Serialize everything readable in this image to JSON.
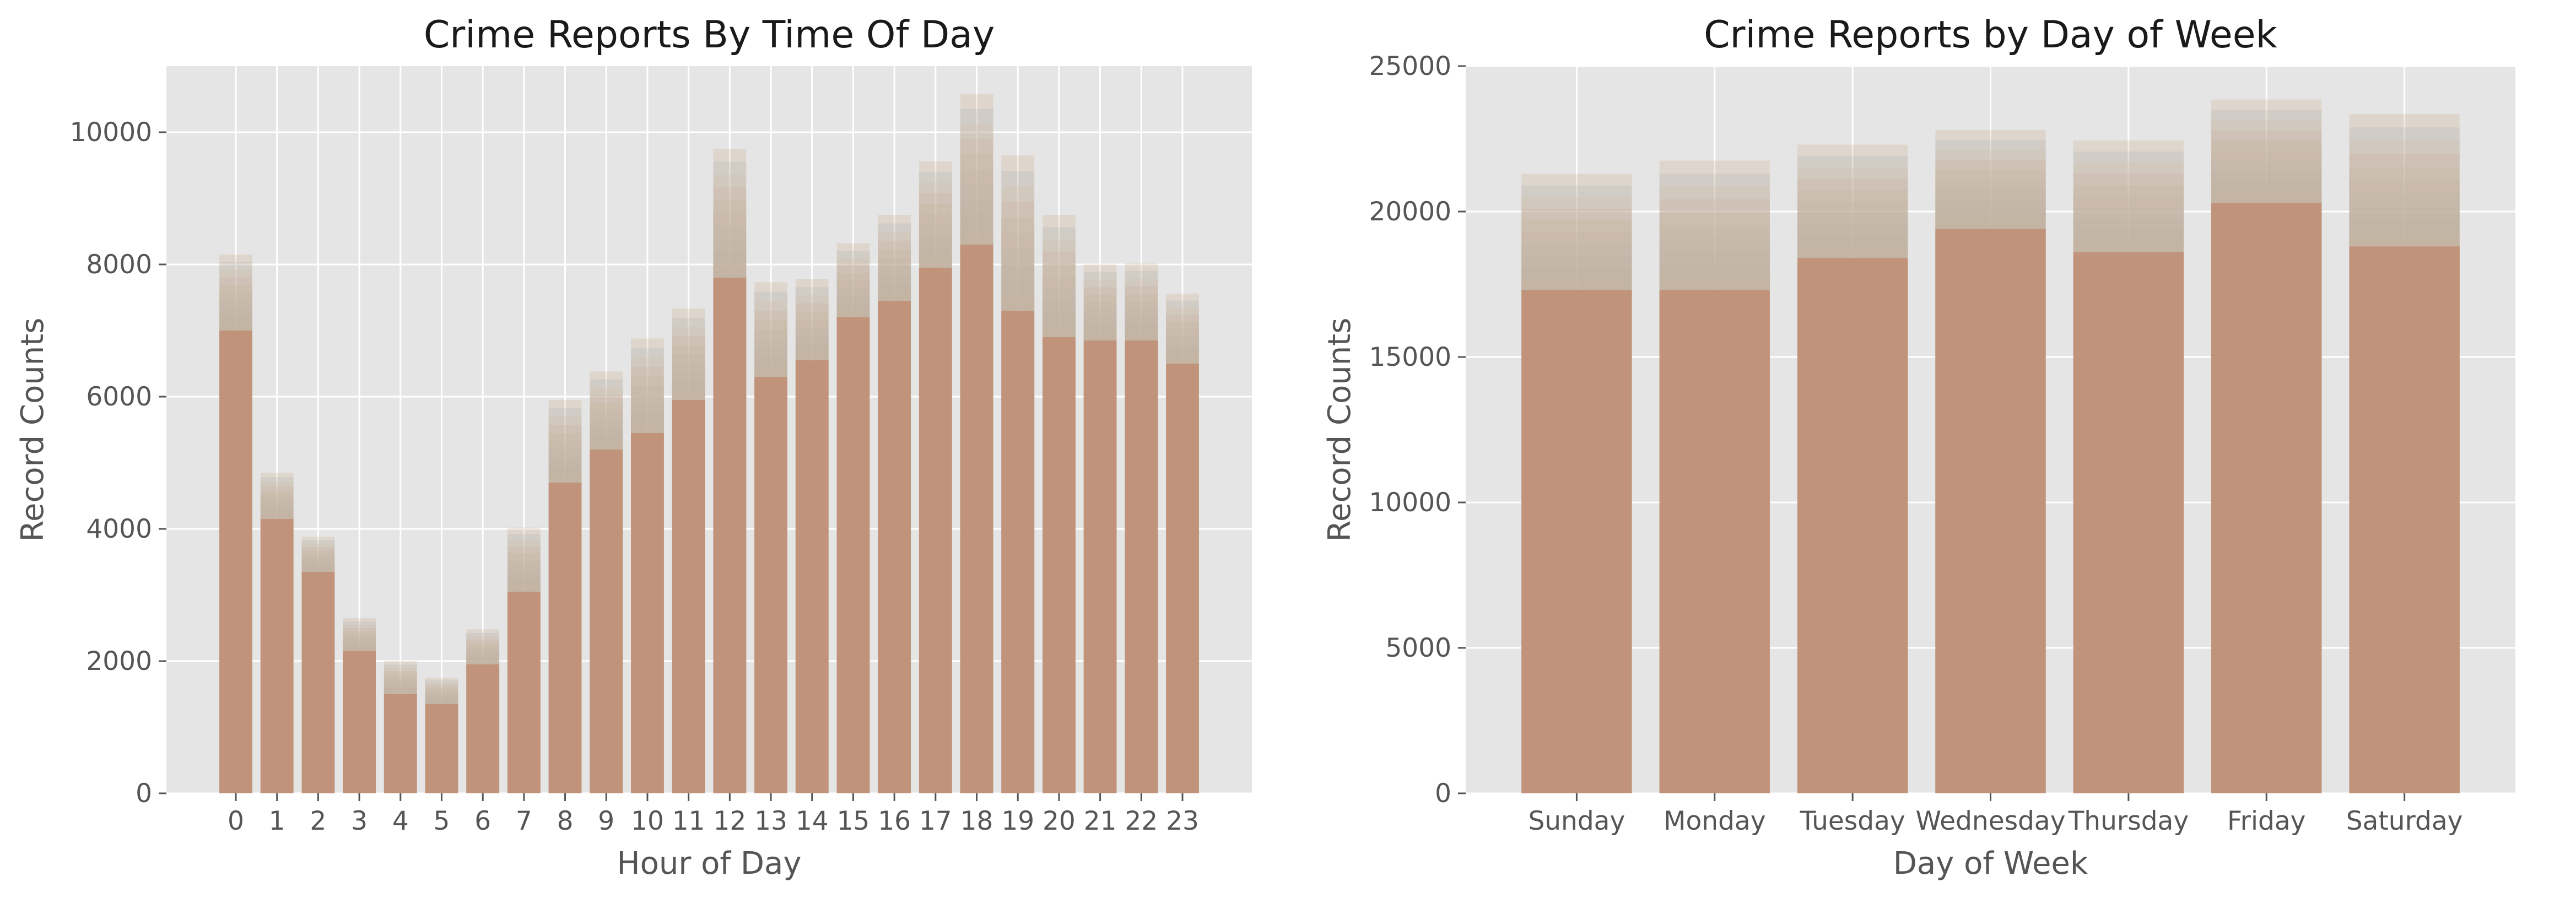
{
  "chart_data": [
    {
      "type": "bar",
      "title": "Crime Reports By Time Of Day",
      "xlabel": "Hour of Day",
      "ylabel": "Record Counts",
      "ylim": [
        0,
        11000
      ],
      "yticks": [
        0,
        2000,
        4000,
        6000,
        8000,
        10000
      ],
      "grid": true,
      "categories": [
        "0",
        "1",
        "2",
        "3",
        "4",
        "5",
        "6",
        "7",
        "8",
        "9",
        "10",
        "11",
        "12",
        "13",
        "14",
        "15",
        "16",
        "17",
        "18",
        "19",
        "20",
        "21",
        "22",
        "23"
      ],
      "values": [
        8150,
        4850,
        3880,
        2650,
        2000,
        1750,
        2480,
        4020,
        5950,
        6380,
        6880,
        7330,
        9750,
        7730,
        7780,
        8320,
        8750,
        9560,
        10580,
        9650,
        8750,
        8000,
        8020,
        7560
      ],
      "base_values": [
        7000,
        4150,
        3350,
        2150,
        1500,
        1350,
        1950,
        3050,
        4700,
        5200,
        5450,
        5950,
        7800,
        6300,
        6550,
        7200,
        7450,
        7950,
        8300,
        7300,
        6900,
        6850,
        6850,
        6500
      ],
      "colors": {
        "base": "#c0937a",
        "overlay": [
          "#e9a79d",
          "#d3b8a0",
          "#b9bfa0",
          "#a6b5c4",
          "#b0aab8",
          "#c4c090",
          "#d6ad96",
          "#e3b9a8",
          "#9ab0c0",
          "#c8a57a"
        ]
      }
    },
    {
      "type": "bar",
      "title": "Crime Reports by Day of Week",
      "xlabel": "Day of Week",
      "ylabel": "Record Counts",
      "ylim": [
        0,
        25000
      ],
      "yticks": [
        0,
        5000,
        10000,
        15000,
        20000,
        25000
      ],
      "grid": true,
      "categories": [
        "Sunday",
        "Monday",
        "Tuesday",
        "Wednesday",
        "Thursday",
        "Friday",
        "Saturday"
      ],
      "values": [
        21300,
        21750,
        22300,
        22800,
        22450,
        23850,
        23350
      ],
      "base_values": [
        17300,
        17300,
        18400,
        19400,
        18600,
        20300,
        18800
      ],
      "colors": {
        "base": "#c0937a",
        "overlay": [
          "#e9a79d",
          "#d3b8a0",
          "#b9bfa0",
          "#a6b5c4",
          "#b0aab8",
          "#c4c090",
          "#d6ad96",
          "#e3b9a8",
          "#9ab0c0",
          "#c8a57a"
        ]
      }
    }
  ]
}
